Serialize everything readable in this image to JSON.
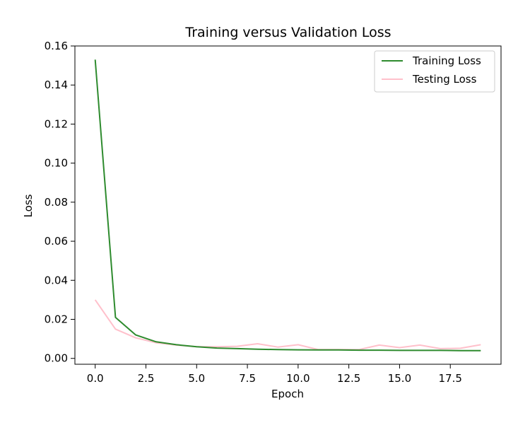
{
  "chart_data": {
    "type": "line",
    "title": "Training versus Validation Loss",
    "xlabel": "Epoch",
    "ylabel": "Loss",
    "xlim": [
      -1,
      20
    ],
    "ylim": [
      -0.003,
      0.16
    ],
    "x_ticks": [
      0.0,
      2.5,
      5.0,
      7.5,
      10.0,
      12.5,
      15.0,
      17.5
    ],
    "x_tick_labels": [
      "0.0",
      "2.5",
      "5.0",
      "7.5",
      "10.0",
      "12.5",
      "15.0",
      "17.5"
    ],
    "y_ticks": [
      0.0,
      0.02,
      0.04,
      0.06,
      0.08,
      0.1,
      0.12,
      0.14,
      0.16
    ],
    "y_tick_labels": [
      "0.00",
      "0.02",
      "0.04",
      "0.06",
      "0.08",
      "0.10",
      "0.12",
      "0.14",
      "0.16"
    ],
    "grid": false,
    "legend_position": "top-right",
    "x": [
      0,
      1,
      2,
      3,
      4,
      5,
      6,
      7,
      8,
      9,
      10,
      11,
      12,
      13,
      14,
      15,
      16,
      17,
      18,
      19
    ],
    "series": [
      {
        "name": "Training Loss",
        "color": "#2e8b2e",
        "values": [
          0.153,
          0.021,
          0.012,
          0.0085,
          0.007,
          0.006,
          0.0053,
          0.005,
          0.0047,
          0.0045,
          0.0044,
          0.0043,
          0.0043,
          0.0042,
          0.0042,
          0.0041,
          0.0041,
          0.0041,
          0.004,
          0.004
        ]
      },
      {
        "name": "Testing Loss",
        "color": "#ffc0cb",
        "values": [
          0.03,
          0.015,
          0.0105,
          0.008,
          0.0068,
          0.006,
          0.006,
          0.0062,
          0.0075,
          0.0058,
          0.007,
          0.0045,
          0.0045,
          0.0045,
          0.0068,
          0.0055,
          0.0068,
          0.005,
          0.0052,
          0.007
        ]
      }
    ]
  }
}
